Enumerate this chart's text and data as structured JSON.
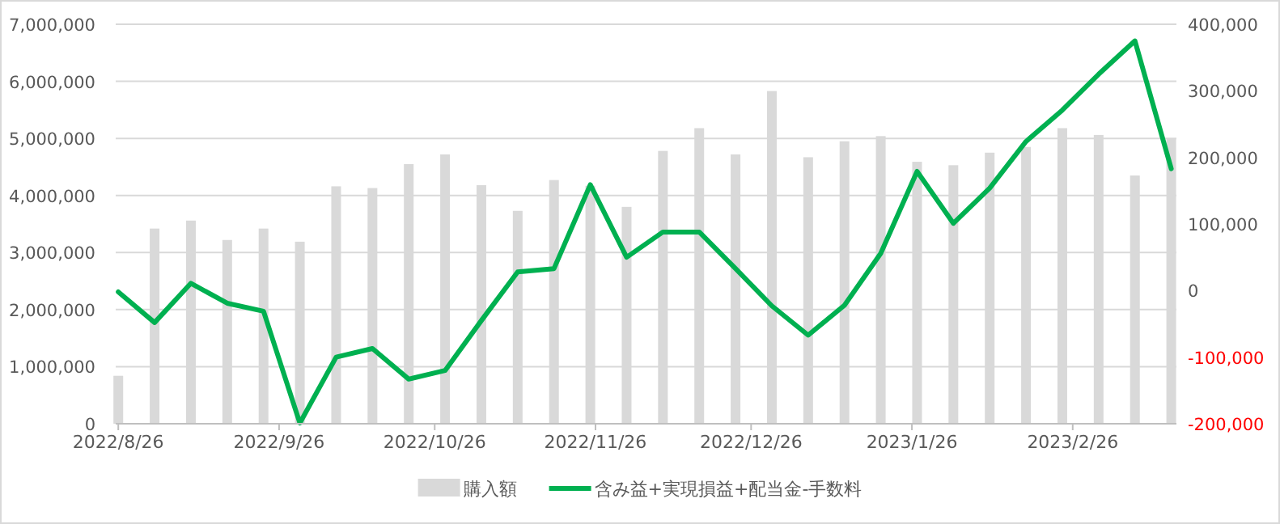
{
  "chart_data": {
    "type": "bar",
    "x": [
      "2022-08-26",
      "2022-09-02",
      "2022-09-09",
      "2022-09-16",
      "2022-09-23",
      "2022-09-30",
      "2022-10-07",
      "2022-10-14",
      "2022-10-21",
      "2022-10-28",
      "2022-11-04",
      "2022-11-11",
      "2022-11-18",
      "2022-11-25",
      "2022-12-02",
      "2022-12-09",
      "2022-12-16",
      "2022-12-23",
      "2022-12-30",
      "2023-01-06",
      "2023-01-13",
      "2023-01-20",
      "2023-01-27",
      "2023-02-03",
      "2023-02-10",
      "2023-02-17",
      "2023-02-24",
      "2023-03-03",
      "2023-03-10",
      "2023-03-17"
    ],
    "xlim": [
      "2022-08-25T12:00",
      "2023-03-18"
    ],
    "xticks": [
      {
        "value": "2022-08-26",
        "label": "2022/8/26"
      },
      {
        "value": "2022-09-26",
        "label": "2022/9/26"
      },
      {
        "value": "2022-10-26",
        "label": "2022/10/26"
      },
      {
        "value": "2022-11-26",
        "label": "2022/11/26"
      },
      {
        "value": "2022-12-26",
        "label": "2022/12/26"
      },
      {
        "value": "2023-01-26",
        "label": "2023/1/26"
      },
      {
        "value": "2023-02-26",
        "label": "2023/2/26"
      }
    ],
    "ylim": [
      0,
      7000000
    ],
    "yticks": [
      {
        "value": 0,
        "label": "0"
      },
      {
        "value": 1000000,
        "label": "1,000,000"
      },
      {
        "value": 2000000,
        "label": "2,000,000"
      },
      {
        "value": 3000000,
        "label": "3,000,000"
      },
      {
        "value": 4000000,
        "label": "4,000,000"
      },
      {
        "value": 5000000,
        "label": "5,000,000"
      },
      {
        "value": 6000000,
        "label": "6,000,000"
      },
      {
        "value": 7000000,
        "label": "7,000,000"
      }
    ],
    "y2lim": [
      -200000,
      400000
    ],
    "y2ticks": [
      {
        "value": -200000,
        "label": "-200,000"
      },
      {
        "value": -100000,
        "label": "-100,000"
      },
      {
        "value": 0,
        "label": "0"
      },
      {
        "value": 100000,
        "label": "100,000"
      },
      {
        "value": 200000,
        "label": "200,000"
      },
      {
        "value": 300000,
        "label": "300,000"
      },
      {
        "value": 400000,
        "label": "400,000"
      }
    ],
    "grid": "y",
    "legend": "bottom",
    "series": [
      {
        "name": "購入額",
        "color": "#d9d9d9",
        "values": [
          840000,
          3420000,
          3560000,
          3220000,
          3420000,
          3190000,
          4160000,
          4130000,
          4550000,
          4720000,
          4180000,
          3730000,
          4270000,
          4170000,
          3800000,
          4780000,
          5180000,
          4720000,
          5830000,
          4670000,
          4950000,
          5040000,
          4590000,
          4530000,
          4750000,
          4850000,
          5180000,
          5060000,
          4350000,
          4990000
        ]
      },
      {
        "name": "含み益+実現損益+配当金-手数料",
        "type": "line",
        "axis": "y2",
        "color": "#00b050",
        "values": [
          -2000,
          -48000,
          11000,
          -19000,
          -31000,
          -199000,
          -100000,
          -87000,
          -133000,
          -120000,
          -45000,
          28000,
          33000,
          159000,
          50000,
          88000,
          88000,
          33000,
          -23000,
          -67000,
          -22000,
          56000,
          179000,
          101000,
          154000,
          224000,
          271000,
          325000,
          375000,
          183000
        ]
      }
    ]
  }
}
